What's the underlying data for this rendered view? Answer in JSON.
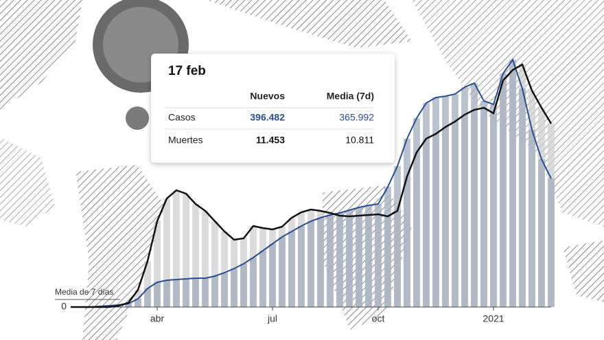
{
  "chart_data": {
    "type": "line",
    "annotation": "Media de 7 días",
    "categories": [
      null,
      null,
      null,
      null,
      null,
      null,
      null,
      null,
      null,
      "abr",
      null,
      null,
      null,
      null,
      null,
      null,
      null,
      null,
      null,
      null,
      null,
      "jul",
      null,
      null,
      null,
      null,
      null,
      null,
      null,
      null,
      null,
      null,
      "oct",
      null,
      null,
      null,
      null,
      null,
      null,
      null,
      null,
      null,
      null,
      null,
      "2021",
      null,
      null,
      null,
      null,
      null,
      null
    ],
    "ylim": [
      0,
      757000
    ],
    "yticks": [
      0
    ],
    "y2lim": [
      0,
      15670
    ],
    "series": [
      {
        "name": "Casos",
        "color": "#2a4d8f",
        "bar_color": "#a3adc0",
        "values": [
          0,
          0,
          0,
          2000,
          3900,
          5900,
          9800,
          23500,
          52800,
          70400,
          76300,
          78200,
          80200,
          82200,
          82200,
          88000,
          97800,
          109500,
          123200,
          140800,
          160400,
          180000,
          199500,
          215200,
          230800,
          244500,
          254300,
          262100,
          268000,
          275800,
          283600,
          289500,
          293400,
          342300,
          401000,
          479200,
          537900,
          580900,
          596600,
          600500,
          606400,
          625900,
          637700,
          586800,
          577000,
          665000,
          704200,
          622000,
          504600,
          420500,
          365992
        ]
      },
      {
        "name": "Muertes",
        "color": "#111111",
        "bar_color": "#cfcfcf",
        "axis": "y2",
        "values": [
          0,
          0,
          0,
          0,
          0,
          81,
          243,
          1013,
          2714,
          5063,
          6399,
          6885,
          6683,
          6075,
          5670,
          5063,
          4455,
          3969,
          4050,
          4779,
          4658,
          4577,
          4739,
          5265,
          5589,
          5751,
          5670,
          5549,
          5387,
          5346,
          5387,
          5427,
          5468,
          5346,
          5670,
          7695,
          9113,
          9923,
          10206,
          10611,
          10935,
          11340,
          11624,
          11745,
          11421,
          13365,
          13973,
          14297,
          12758,
          11745,
          10811
        ]
      }
    ],
    "tooltip": {
      "title": "17 feb",
      "columns": [
        "Nuevos",
        "Media (7d)"
      ],
      "rows": [
        {
          "label": "Casos",
          "values": [
            "396.482",
            "365.992"
          ]
        },
        {
          "label": "Muertes",
          "values": [
            "11.453",
            "10.811"
          ]
        }
      ]
    }
  }
}
